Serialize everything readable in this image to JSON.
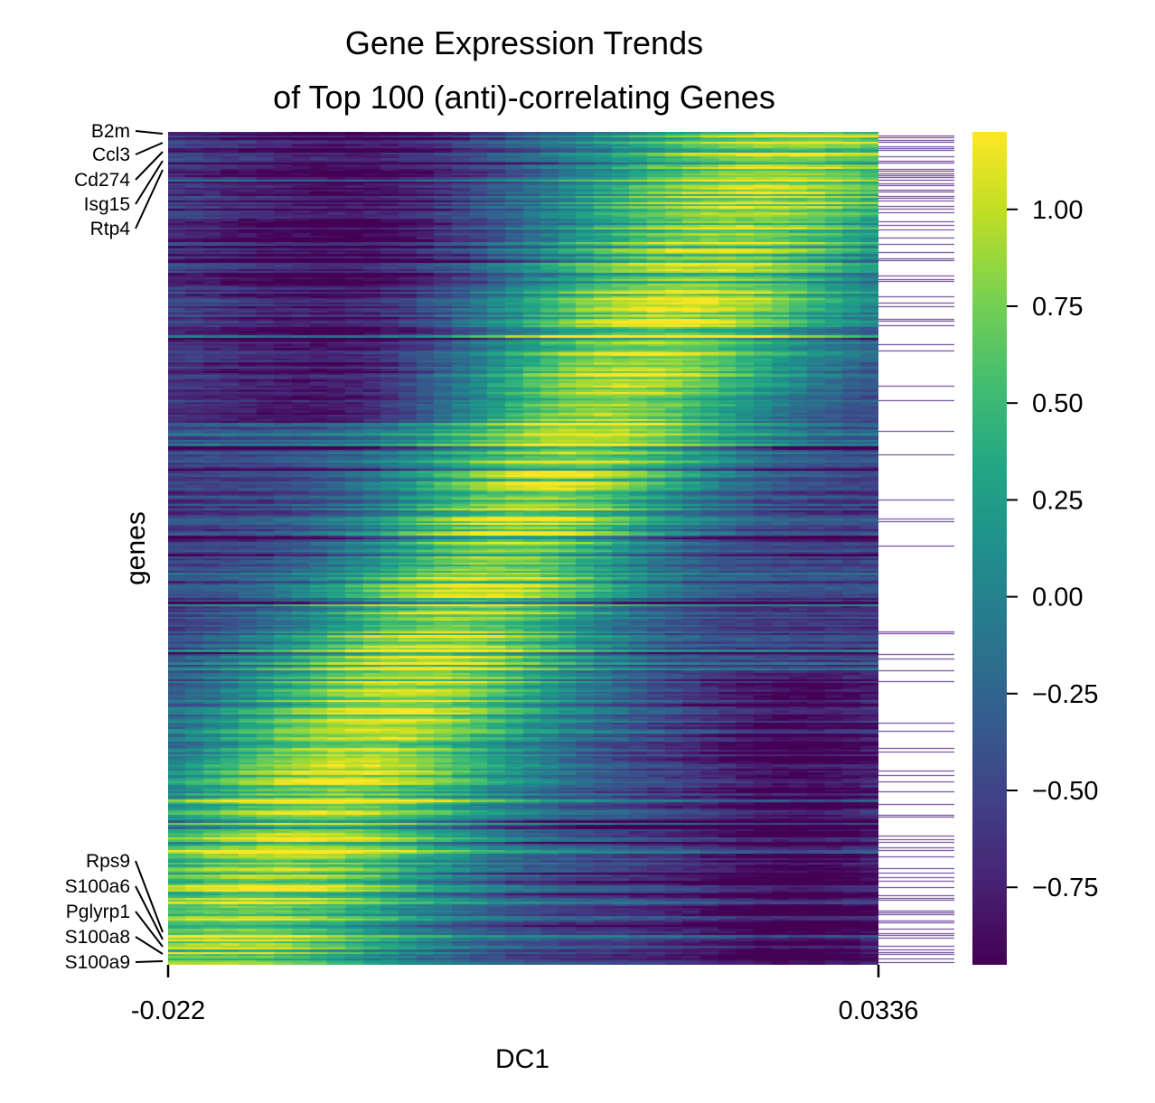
{
  "chart_data": {
    "type": "heatmap",
    "title": "Gene Expression Trends\nof Top 100 (anti)-correlating Genes",
    "title_lines": [
      "Gene Expression Trends",
      "of Top 100 (anti)-correlating Genes"
    ],
    "xlabel": "DC1",
    "ylabel": "genes",
    "x_ticks": [
      "-0.022",
      "0.0336"
    ],
    "x_range": [
      -0.022,
      0.0336
    ],
    "colormap": "viridis",
    "colorbar": {
      "range": [
        -0.95,
        1.2
      ],
      "ticks": [
        -0.75,
        -0.5,
        -0.25,
        0.0,
        0.25,
        0.5,
        0.75,
        1.0
      ],
      "tick_labels": [
        "−0.75",
        "−0.50",
        "−0.25",
        "0.00",
        "0.25",
        "0.50",
        "0.75",
        "1.00"
      ]
    },
    "labeled_genes_top": [
      "B2m",
      "Ccl3",
      "Cd274",
      "Isg15",
      "Rtp4"
    ],
    "labeled_genes_bottom": [
      "Rps9",
      "S100a6",
      "Pglyrp1",
      "S100a8",
      "S100a9"
    ],
    "n_rows": 400,
    "trend_description": "Top rows rise in expression along DC1 (low at -0.022, high at 0.0336); bottom rows fall (high at -0.022, low at 0.0336). A side bar marks the top 100 (anti)-correlating genes, clustered at the top and bottom.",
    "highlight_color": "#5b2a8c"
  }
}
